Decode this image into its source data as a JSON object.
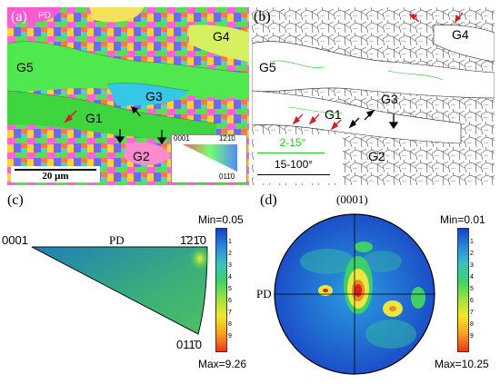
{
  "panel_a": {
    "label": "(a)",
    "direction": "PD",
    "grains": [
      "G5",
      "G4",
      "G3",
      "G1",
      "G2"
    ],
    "scale_bar": "20 μm",
    "key": {
      "c0001": "0001",
      "c1210": "1̄21̄0",
      "c0110": "011̄0"
    }
  },
  "panel_b": {
    "label": "(b)",
    "grains": [
      "G5",
      "G4",
      "G3",
      "G1",
      "G2"
    ],
    "legend": {
      "low": "2-15°",
      "high": "15-100°",
      "low_color": "#22cc22",
      "high_color": "#000000"
    }
  },
  "panel_c": {
    "label": "(c)",
    "pole_0001": "0001",
    "pd": "PD",
    "pole_1210": "1̄21̄0",
    "pole_0110": "011̄0",
    "min": "Min=0.05",
    "max": "Max=9.26",
    "ticks": [
      "1",
      "2",
      "3",
      "4",
      "5",
      "6",
      "7",
      "8",
      "9"
    ]
  },
  "panel_d": {
    "label": "(d)",
    "pole": "(0001)",
    "pd": "PD",
    "min": "Min=0.01",
    "max": "Max=10.25",
    "ticks": [
      "1",
      "2",
      "3",
      "4",
      "5",
      "6",
      "7",
      "8",
      "9"
    ]
  },
  "colors": {
    "low_angle": "#22cc22",
    "high_angle": "#000000",
    "arrow_red": "#cc2222"
  }
}
